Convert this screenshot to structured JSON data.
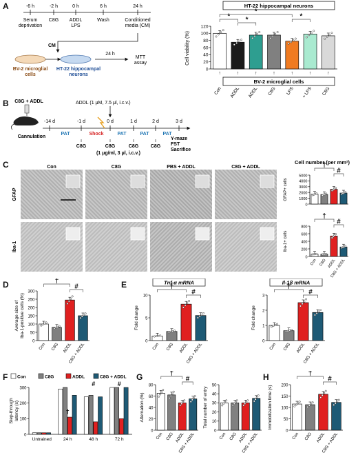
{
  "panels": [
    "A",
    "B",
    "C",
    "D",
    "E",
    "F",
    "G",
    "H"
  ],
  "panelA": {
    "timeline": [
      "-6 h",
      "-2 h",
      "0 h",
      "6 h",
      "24 h"
    ],
    "steps": [
      "Serum\ndeprivation",
      "C8G",
      "ADDL\nLPS",
      "Wash",
      "Conditioned\nmedia (CM)"
    ],
    "cm": "CM",
    "cells_bv2": "BV-2 microglial\ncells",
    "cells_ht22": "HT-22 hippocampal\nneurons",
    "arrow_24h": "24 h",
    "mtt": "MTT\nassay",
    "header_top": "HT-22 hippocampal neurons",
    "header_bottom": "BV-2 microglial cells",
    "arrow": "↑",
    "colors": {
      "white": "#ffffff",
      "dark": "#1b1b1b",
      "teal": "#2e9e90",
      "gray": "#808080",
      "orange": "#f07b21",
      "mint": "#a9ead0",
      "light": "#d9d9d9",
      "red": "#e02020"
    },
    "star": "*"
  },
  "panelB": {
    "syringe_label": "C8G + ADDL",
    "addl": "ADDL (1 μM, 7.5 μl, i.c.v.)",
    "ticks": [
      "-14 d",
      "-1 d",
      "0 d",
      "1 d",
      "2 d",
      "3 d"
    ],
    "cannulation": "Cannulation",
    "pat": "PAT",
    "shock": "Shock",
    "c8g": "C8G",
    "dose": "(1 μg/ml, 3 μl, i.c.v.)",
    "tests": "Y-maze\nFST\nSacrifice"
  },
  "panelC": {
    "cols": [
      "Con",
      "C8G",
      "PBS + ADDL",
      "C8G + ADDL"
    ],
    "rows": [
      "GFAP",
      "Iba-1"
    ],
    "title": "Cell number (per mm²)",
    "gfap": {
      "ylabel": "GFAP+ cells",
      "ticks": [
        "0",
        "1000",
        "2000",
        "3000",
        "4000",
        "5000"
      ],
      "values": [
        1700,
        1650,
        2550,
        1900
      ],
      "ymax": 5000
    },
    "iba": {
      "ylabel": "Iba-1+ cells",
      "ticks": [
        "0",
        "200",
        "400",
        "600",
        "800"
      ],
      "values": [
        60,
        60,
        540,
        250
      ],
      "ymax": 800
    },
    "xcats": [
      "Con",
      "C8G",
      "ADDL",
      "C8G + ADDL"
    ],
    "dagger": "†",
    "hash": "#"
  },
  "chart_data": [
    {
      "type": "bar",
      "panel": "A",
      "categories": [
        "Con",
        "ADDL",
        "C8G + ADDL",
        "C8G",
        "LPS",
        "C8G + LPS",
        "C8G"
      ],
      "values": [
        100,
        75,
        95,
        95,
        78,
        98,
        93
      ],
      "ylabel": "Cell viability (%)",
      "ylim": [
        0,
        120
      ],
      "yticks": [
        "0",
        "20",
        "40",
        "60",
        "80",
        "100",
        "120"
      ]
    },
    {
      "type": "bar",
      "panel": "D",
      "categories": [
        "Con",
        "C8G",
        "ADDL",
        "C8G + ADDL"
      ],
      "values": [
        100,
        80,
        245,
        150
      ],
      "ylabel": "Average size of\nIba-1-positive cells (%)",
      "ylim": [
        0,
        300
      ],
      "yticks": [
        "0",
        "50",
        "100",
        "150",
        "200",
        "250",
        "300"
      ]
    },
    {
      "type": "bar",
      "panel": "E",
      "title": "Tnf-α mRNA",
      "categories": [
        "Con",
        "C8G",
        "ADDL",
        "C8G + ADDL"
      ],
      "values": [
        1.0,
        2.0,
        8.0,
        5.5
      ],
      "ylabel": "Fold change",
      "ylim": [
        0,
        10
      ],
      "yticks": [
        "0",
        "5",
        "10"
      ]
    },
    {
      "type": "bar",
      "panel": "E",
      "title": "Il-1β mRNA",
      "categories": [
        "Con",
        "C8G",
        "ADDL",
        "C8G + ADDL"
      ],
      "values": [
        1.0,
        0.65,
        2.5,
        1.85
      ],
      "ylabel": "Fold change",
      "ylim": [
        0,
        3
      ],
      "yticks": [
        "0",
        "1",
        "2",
        "3"
      ]
    },
    {
      "type": "bar",
      "panel": "F",
      "categories": [
        "Untrained",
        "24 h",
        "48 h",
        "72 h"
      ],
      "series": [
        {
          "name": "Con",
          "values": [
            10,
            290,
            240,
            300
          ]
        },
        {
          "name": "C8G",
          "values": [
            10,
            300,
            250,
            300
          ]
        },
        {
          "name": "ADDL",
          "values": [
            10,
            110,
            80,
            100
          ]
        },
        {
          "name": "C8G + ADDL",
          "values": [
            10,
            250,
            240,
            300
          ]
        }
      ],
      "ylabel": "Step-through\nlatency (s)",
      "ylim": [
        0,
        300
      ],
      "yticks": [
        "0",
        "100",
        "200",
        "300"
      ]
    },
    {
      "type": "bar",
      "panel": "G",
      "categories": [
        "Con",
        "C8G",
        "ADDL",
        "C8G + ADDL"
      ],
      "values": [
        65,
        62,
        48,
        55
      ],
      "ylabel": "Alternation (%)",
      "ylim": [
        0,
        80
      ],
      "yticks": [
        "0",
        "20",
        "40",
        "60",
        "80"
      ]
    },
    {
      "type": "bar",
      "panel": "G",
      "categories": [
        "Con",
        "C8G",
        "ADDL",
        "C8G + ADDL"
      ],
      "values": [
        30,
        30,
        30,
        35
      ],
      "ylabel": "Total number of entry",
      "ylim": [
        0,
        50
      ],
      "yticks": [
        "0",
        "10",
        "20",
        "30",
        "40",
        "50"
      ]
    },
    {
      "type": "bar",
      "panel": "H",
      "categories": [
        "Con",
        "C8G",
        "ADDL",
        "C8G + ADDL"
      ],
      "values": [
        115,
        112,
        158,
        122
      ],
      "ylabel": "Immobilization time (s)",
      "ylim": [
        0,
        200
      ],
      "yticks": [
        "0",
        "50",
        "100",
        "150",
        "200"
      ]
    }
  ]
}
